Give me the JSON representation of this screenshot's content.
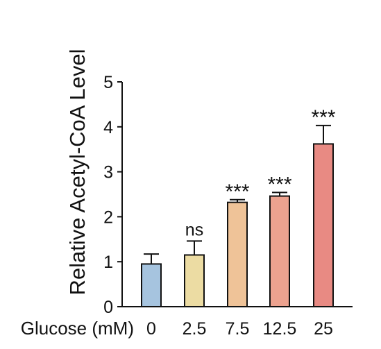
{
  "chart_data": {
    "type": "bar",
    "xlabel": "Glucose (mM)",
    "ylabel": "Relative Acetyl-CoA Level",
    "categories": [
      "0",
      "2.5",
      "7.5",
      "12.5",
      "25"
    ],
    "values": [
      0.95,
      1.15,
      2.32,
      2.46,
      3.62
    ],
    "errors": [
      0.22,
      0.31,
      0.06,
      0.08,
      0.41
    ],
    "significance": [
      "",
      "ns",
      "***",
      "***",
      "***"
    ],
    "colors": [
      "#a6c4df",
      "#ecdca3",
      "#efc398",
      "#eca28f",
      "#e88a83"
    ],
    "ylim": [
      0,
      5
    ],
    "yticks": [
      "0",
      "1",
      "2",
      "3",
      "4",
      "5"
    ],
    "grid": false
  }
}
